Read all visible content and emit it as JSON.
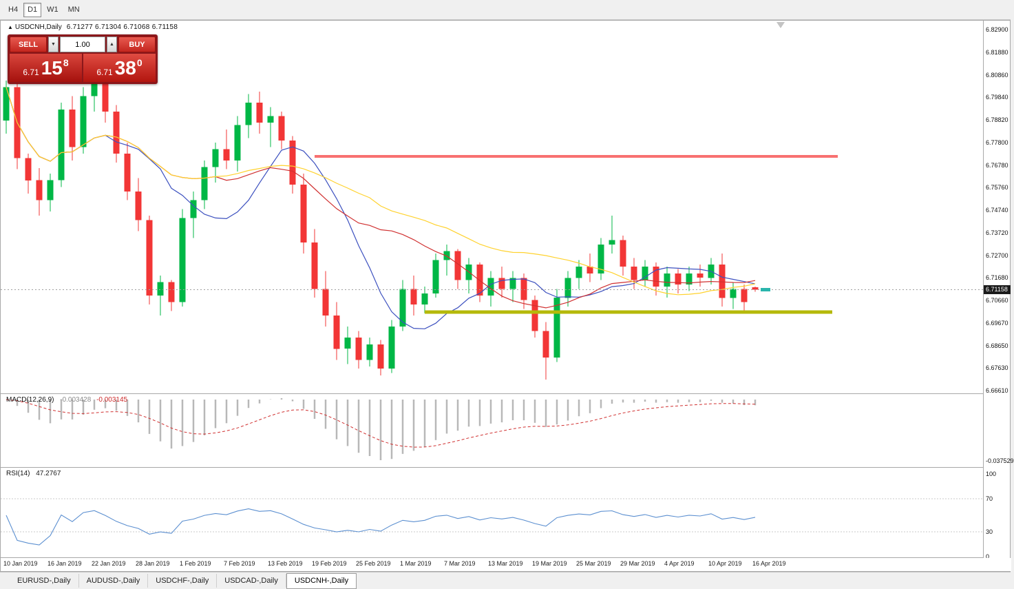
{
  "period_tabs": {
    "items": [
      {
        "label": "H4",
        "active": false
      },
      {
        "label": "D1",
        "active": true
      },
      {
        "label": "W1",
        "active": false
      },
      {
        "label": "MN",
        "active": false
      }
    ]
  },
  "title": {
    "collapse_icon": "▲",
    "symbol": "USDCNH,Daily",
    "ohlc": "6.71277 6.71304 6.71068 6.71158"
  },
  "trade_panel": {
    "sell_label": "SELL",
    "buy_label": "BUY",
    "volume": "1.00",
    "volume_down_icon": "▼",
    "volume_up_icon": "▲",
    "sell_price_small": "6.71",
    "sell_price_big": "15",
    "sell_price_sup": "8",
    "buy_price_small": "6.71",
    "buy_price_big": "38",
    "buy_price_sup": "0"
  },
  "chart_data": {
    "type": "candlestick",
    "symbol": "USDCNH",
    "timeframe": "Daily",
    "current_price": "6.71158",
    "y_axis": {
      "max": 6.829,
      "min": 6.6661,
      "tick_labels": [
        "6.82900",
        "6.81880",
        "6.80860",
        "6.79840",
        "6.78820",
        "6.77800",
        "6.76780",
        "6.75760",
        "6.74740",
        "6.73720",
        "6.72700",
        "6.71680",
        "6.70660",
        "6.69670",
        "6.68650",
        "6.67630",
        "6.66610"
      ]
    },
    "x_labels": [
      "10 Jan 2019",
      "16 Jan 2019",
      "22 Jan 2019",
      "28 Jan 2019",
      "1 Feb 2019",
      "7 Feb 2019",
      "13 Feb 2019",
      "19 Feb 2019",
      "25 Feb 2019",
      "1 Mar 2019",
      "7 Mar 2019",
      "13 Mar 2019",
      "19 Mar 2019",
      "25 Mar 2019",
      "29 Mar 2019",
      "4 Apr 2019",
      "10 Apr 2019",
      "16 Apr 2019"
    ],
    "candles": [
      [
        6.788,
        6.806,
        6.782,
        6.803
      ],
      [
        6.803,
        6.805,
        6.766,
        6.771
      ],
      [
        6.771,
        6.773,
        6.755,
        6.761
      ],
      [
        6.761,
        6.7665,
        6.745,
        6.752
      ],
      [
        6.752,
        6.764,
        6.747,
        6.761
      ],
      [
        6.761,
        6.796,
        6.758,
        6.793
      ],
      [
        6.793,
        6.799,
        6.77,
        6.776
      ],
      [
        6.776,
        6.803,
        6.773,
        6.799
      ],
      [
        6.799,
        6.808,
        6.792,
        6.805
      ],
      [
        6.805,
        6.806,
        6.787,
        6.792
      ],
      [
        6.792,
        6.795,
        6.769,
        6.773
      ],
      [
        6.773,
        6.778,
        6.752,
        6.756
      ],
      [
        6.756,
        6.762,
        6.738,
        6.743
      ],
      [
        6.743,
        6.745,
        6.705,
        6.709
      ],
      [
        6.709,
        6.718,
        6.7,
        6.715
      ],
      [
        6.715,
        6.716,
        6.702,
        6.706
      ],
      [
        6.706,
        6.748,
        6.704,
        6.744
      ],
      [
        6.744,
        6.756,
        6.735,
        6.752
      ],
      [
        6.752,
        6.77,
        6.748,
        6.767
      ],
      [
        6.767,
        6.778,
        6.76,
        6.775
      ],
      [
        6.775,
        6.784,
        6.766,
        6.77
      ],
      [
        6.77,
        6.79,
        6.765,
        6.786
      ],
      [
        6.786,
        6.8,
        6.78,
        6.796
      ],
      [
        6.796,
        6.801,
        6.782,
        6.787
      ],
      [
        6.787,
        6.794,
        6.776,
        6.79
      ],
      [
        6.79,
        6.792,
        6.775,
        6.779
      ],
      [
        6.779,
        6.781,
        6.755,
        6.759
      ],
      [
        6.759,
        6.764,
        6.728,
        6.733
      ],
      [
        6.733,
        6.739,
        6.708,
        6.712
      ],
      [
        6.712,
        6.72,
        6.695,
        6.7
      ],
      [
        6.7,
        6.706,
        6.68,
        6.685
      ],
      [
        6.685,
        6.695,
        6.678,
        6.69
      ],
      [
        6.69,
        6.693,
        6.676,
        6.68
      ],
      [
        6.68,
        6.69,
        6.677,
        6.687
      ],
      [
        6.687,
        6.689,
        6.673,
        6.676
      ],
      [
        6.676,
        6.698,
        6.674,
        6.695
      ],
      [
        6.695,
        6.716,
        6.693,
        6.712
      ],
      [
        6.712,
        6.718,
        6.7,
        6.705
      ],
      [
        6.705,
        6.713,
        6.701,
        6.71
      ],
      [
        6.71,
        6.728,
        6.708,
        6.725
      ],
      [
        6.725,
        6.732,
        6.718,
        6.729
      ],
      [
        6.729,
        6.73,
        6.712,
        6.716
      ],
      [
        6.716,
        6.726,
        6.71,
        6.723
      ],
      [
        6.723,
        6.724,
        6.706,
        6.709
      ],
      [
        6.709,
        6.72,
        6.704,
        6.717
      ],
      [
        6.717,
        6.722,
        6.708,
        6.712
      ],
      [
        6.712,
        6.72,
        6.706,
        6.717
      ],
      [
        6.717,
        6.719,
        6.703,
        6.707
      ],
      [
        6.707,
        6.709,
        6.69,
        6.693
      ],
      [
        6.693,
        6.697,
        6.671,
        6.681
      ],
      [
        6.681,
        6.712,
        6.679,
        6.708
      ],
      [
        6.708,
        6.72,
        6.704,
        6.717
      ],
      [
        6.717,
        6.725,
        6.712,
        6.722
      ],
      [
        6.722,
        6.728,
        6.715,
        6.719
      ],
      [
        6.719,
        6.735,
        6.716,
        6.732
      ],
      [
        6.732,
        6.745,
        6.728,
        6.734
      ],
      [
        6.734,
        6.736,
        6.718,
        6.722
      ],
      [
        6.722,
        6.726,
        6.712,
        6.716
      ],
      [
        6.716,
        6.725,
        6.713,
        6.722
      ],
      [
        6.722,
        6.724,
        6.709,
        6.713
      ],
      [
        6.713,
        6.722,
        6.708,
        6.719
      ],
      [
        6.719,
        6.721,
        6.71,
        6.714
      ],
      [
        6.714,
        6.722,
        6.711,
        6.719
      ],
      [
        6.719,
        6.723,
        6.713,
        6.717
      ],
      [
        6.717,
        6.726,
        6.714,
        6.723
      ],
      [
        6.723,
        6.728,
        6.704,
        6.708
      ],
      [
        6.708,
        6.715,
        6.703,
        6.712
      ],
      [
        6.712,
        6.714,
        6.702,
        6.706
      ],
      [
        6.71277,
        6.71304,
        6.71068,
        6.71158
      ]
    ],
    "ma_lines": [
      {
        "name": "ma-fast-line",
        "period": 10,
        "color": "#3c50bf"
      },
      {
        "name": "ma-mid-line",
        "period": 20,
        "color": "#d03030"
      },
      {
        "name": "ma-slow-line",
        "period": 34,
        "color": "#ffd22e"
      }
    ],
    "h_lines": [
      {
        "name": "resistance-line",
        "price": 6.7718,
        "from_bar": 28,
        "to_bar": 75.5,
        "color": "#f87171",
        "width": 4
      },
      {
        "name": "support-line",
        "price": 6.7015,
        "from_bar": 38,
        "to_bar": 75,
        "color": "#b5b90a",
        "width": 5
      }
    ],
    "style": {
      "bull": "#00b746",
      "bear": "#f23636",
      "macd_bar": "#b8b8b8",
      "macd_signal": "#d03030",
      "rsi_line": "#5b8fd0",
      "last_marker": "#2ab5ac"
    },
    "indicators": {
      "macd": {
        "label": "MACD(12,26,9)",
        "fast": 12,
        "slow": 26,
        "signal": 9,
        "value_main": "-0.003428",
        "value_signal": "-0.003145",
        "axis_min_label": "-0.037529"
      },
      "rsi": {
        "label": "RSI(14)",
        "period": 14,
        "value": "47.2767",
        "levels": [
          70,
          30
        ],
        "axis_labels": [
          "100",
          "70",
          "30",
          "0"
        ]
      }
    }
  },
  "bottom_tabs": {
    "items": [
      {
        "label": "EURUSD-,Daily",
        "active": false
      },
      {
        "label": "AUDUSD-,Daily",
        "active": false
      },
      {
        "label": "USDCHF-,Daily",
        "active": false
      },
      {
        "label": "USDCAD-,Daily",
        "active": false
      },
      {
        "label": "USDCNH-,Daily",
        "active": true
      }
    ]
  }
}
